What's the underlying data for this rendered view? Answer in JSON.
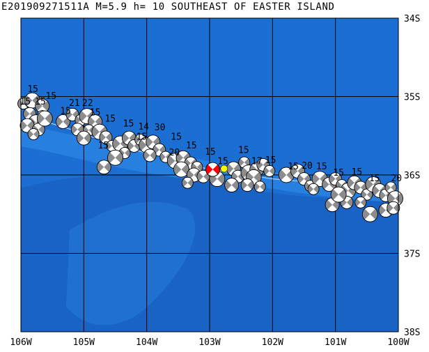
{
  "title": "E201909271511A M=5.9 h= 10 SOUTHEAST OF EASTER ISLAND",
  "lat_labels": [
    "34S",
    "35S",
    "36S",
    "37S",
    "38S"
  ],
  "lon_labels": [
    "106W",
    "105W",
    "104W",
    "103W",
    "102W",
    "101W",
    "100W"
  ],
  "extent": {
    "lon_west": -106,
    "lon_east": -100,
    "lat_north": -34,
    "lat_south": -38
  },
  "colors": {
    "ocean": "#1c6fd2",
    "ridge": "#2b85e4",
    "trench": "#175fbf",
    "grid": "#000000",
    "beachball_compressional": "#8c8c8c",
    "beachball_dilatational": "#ffffff",
    "main_event": "#ff0000",
    "marker": "#ffff00",
    "trace": "#d0e4ff"
  },
  "main_event": {
    "lon": -102.95,
    "lat": -35.93,
    "magnitude": 5.9,
    "depth_km": 10
  },
  "marker": {
    "lon": -102.77,
    "lat": -35.92
  },
  "depth_labels": [
    {
      "text": "15",
      "lon": -105.81,
      "lat": -34.94
    },
    {
      "text": "15",
      "lon": -105.93,
      "lat": -35.1
    },
    {
      "text": "15",
      "lon": -105.69,
      "lat": -35.1
    },
    {
      "text": "15",
      "lon": -105.52,
      "lat": -35.03
    },
    {
      "text": "21",
      "lon": -105.15,
      "lat": -35.12
    },
    {
      "text": "22",
      "lon": -104.94,
      "lat": -35.12
    },
    {
      "text": "15",
      "lon": -105.29,
      "lat": -35.22
    },
    {
      "text": "15",
      "lon": -104.82,
      "lat": -35.24
    },
    {
      "text": "15",
      "lon": -104.58,
      "lat": -35.32
    },
    {
      "text": "15",
      "lon": -104.29,
      "lat": -35.38
    },
    {
      "text": "14",
      "lon": -104.05,
      "lat": -35.42
    },
    {
      "text": "30",
      "lon": -103.79,
      "lat": -35.43
    },
    {
      "text": "15",
      "lon": -103.53,
      "lat": -35.55
    },
    {
      "text": "15",
      "lon": -103.29,
      "lat": -35.66
    },
    {
      "text": "20",
      "lon": -103.56,
      "lat": -35.75
    },
    {
      "text": "15",
      "lon": -102.99,
      "lat": -35.74
    },
    {
      "text": "15",
      "lon": -102.46,
      "lat": -35.72
    },
    {
      "text": "15",
      "lon": -102.79,
      "lat": -35.86
    },
    {
      "text": "17",
      "lon": -102.25,
      "lat": -35.86
    },
    {
      "text": "15",
      "lon": -102.03,
      "lat": -35.85
    },
    {
      "text": "15",
      "lon": -101.67,
      "lat": -35.93
    },
    {
      "text": "20",
      "lon": -101.45,
      "lat": -35.92
    },
    {
      "text": "15",
      "lon": -101.22,
      "lat": -35.93
    },
    {
      "text": "15",
      "lon": -100.95,
      "lat": -36.01
    },
    {
      "text": "15",
      "lon": -100.66,
      "lat": -36.0
    },
    {
      "text": "15",
      "lon": -100.38,
      "lat": -36.08
    },
    {
      "text": "20",
      "lon": -100.03,
      "lat": -36.08
    },
    {
      "text": "15",
      "lon": -104.69,
      "lat": -35.66
    },
    {
      "text": "15",
      "lon": -104.08,
      "lat": -35.55
    }
  ],
  "events": [
    [
      -105.96,
      -35.09
    ],
    [
      -105.82,
      -35.05
    ],
    [
      -105.66,
      -35.12
    ],
    [
      -105.86,
      -35.22
    ],
    [
      -105.66,
      -35.25
    ],
    [
      -105.76,
      -35.33
    ],
    [
      -105.9,
      -35.37
    ],
    [
      -105.72,
      -35.42
    ],
    [
      -105.8,
      -35.48
    ],
    [
      -105.62,
      -35.28
    ],
    [
      -105.33,
      -35.32
    ],
    [
      -105.18,
      -35.23
    ],
    [
      -105.05,
      -35.3
    ],
    [
      -104.95,
      -35.25
    ],
    [
      -104.82,
      -35.32
    ],
    [
      -105.1,
      -35.42
    ],
    [
      -104.92,
      -35.43
    ],
    [
      -104.75,
      -35.45
    ],
    [
      -105.0,
      -35.53
    ],
    [
      -104.65,
      -35.52
    ],
    [
      -104.55,
      -35.63
    ],
    [
      -104.42,
      -35.6
    ],
    [
      -104.28,
      -35.53
    ],
    [
      -104.2,
      -35.63
    ],
    [
      -104.1,
      -35.55
    ],
    [
      -104.0,
      -35.62
    ],
    [
      -103.9,
      -35.58
    ],
    [
      -103.8,
      -35.68
    ],
    [
      -104.35,
      -35.72
    ],
    [
      -104.5,
      -35.78
    ],
    [
      -104.68,
      -35.9
    ],
    [
      -103.95,
      -35.75
    ],
    [
      -103.7,
      -35.77
    ],
    [
      -103.55,
      -35.82
    ],
    [
      -103.42,
      -35.78
    ],
    [
      -103.3,
      -35.85
    ],
    [
      -103.2,
      -35.9
    ],
    [
      -103.45,
      -35.93
    ],
    [
      -103.25,
      -36.0
    ],
    [
      -103.1,
      -36.02
    ],
    [
      -103.35,
      -36.1
    ],
    [
      -102.88,
      -36.05
    ],
    [
      -102.62,
      -35.92
    ],
    [
      -102.55,
      -36.02
    ],
    [
      -102.45,
      -35.84
    ],
    [
      -102.38,
      -35.97
    ],
    [
      -102.25,
      -35.93
    ],
    [
      -102.15,
      -35.87
    ],
    [
      -102.05,
      -35.95
    ],
    [
      -102.3,
      -36.03
    ],
    [
      -102.65,
      -36.13
    ],
    [
      -102.4,
      -36.13
    ],
    [
      -102.2,
      -36.15
    ],
    [
      -101.78,
      -36.0
    ],
    [
      -101.6,
      -35.95
    ],
    [
      -101.5,
      -36.05
    ],
    [
      -101.4,
      -36.14
    ],
    [
      -101.25,
      -36.05
    ],
    [
      -101.1,
      -36.12
    ],
    [
      -101.0,
      -36.05
    ],
    [
      -100.9,
      -36.13
    ],
    [
      -100.8,
      -36.2
    ],
    [
      -100.7,
      -36.1
    ],
    [
      -100.6,
      -36.16
    ],
    [
      -100.5,
      -36.25
    ],
    [
      -100.4,
      -36.12
    ],
    [
      -100.3,
      -36.2
    ],
    [
      -100.2,
      -36.26
    ],
    [
      -100.12,
      -36.16
    ],
    [
      -100.05,
      -36.3
    ],
    [
      -101.05,
      -36.38
    ],
    [
      -100.82,
      -36.35
    ],
    [
      -100.6,
      -36.35
    ],
    [
      -100.45,
      -36.5
    ],
    [
      -100.2,
      -36.45
    ],
    [
      -100.08,
      -36.42
    ],
    [
      -101.35,
      -36.18
    ],
    [
      -100.95,
      -36.25
    ]
  ]
}
